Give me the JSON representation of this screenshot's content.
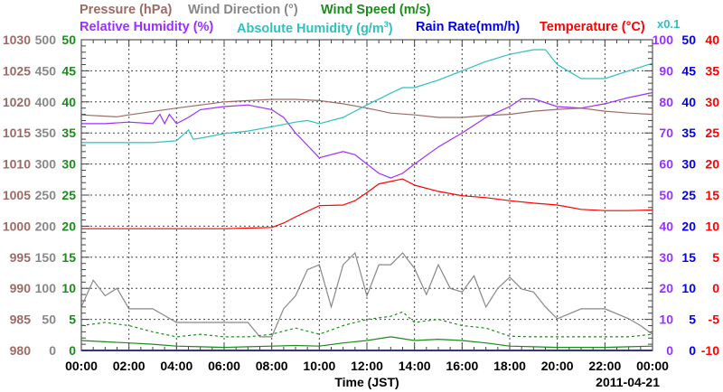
{
  "legend": {
    "pressure": {
      "label": "Pressure (hPa)",
      "color": "#9c6b66"
    },
    "wind_direction": {
      "label": "Wind Direction (°)",
      "color": "#888888"
    },
    "wind_speed": {
      "label": "Wind Speed (m/s)",
      "color": "#1a8c1a"
    },
    "relative_humidity": {
      "label": "Relative Humidity (%)",
      "color": "#9b30ff"
    },
    "absolute_humidity": {
      "label": "Absolute Humidity (g/m",
      "sup": "3",
      "close": ")",
      "color": "#30c0c0"
    },
    "rain_rate": {
      "label": "Rain Rate(mm/h)",
      "color": "#0000ee"
    },
    "temperature": {
      "label": "Temperature (°C)",
      "color": "#ff0000"
    },
    "scale_note": "x0.1"
  },
  "chart_data": {
    "type": "line",
    "xlabel": "Time (JST)",
    "date_label": "2011-04-21",
    "x_ticks": [
      "00:00",
      "02:00",
      "04:00",
      "06:00",
      "08:00",
      "10:00",
      "12:00",
      "14:00",
      "16:00",
      "18:00",
      "20:00",
      "22:00",
      "00:00"
    ],
    "xlim_hours": [
      0,
      24
    ],
    "grid": true,
    "axes": {
      "pressure": {
        "ticks": [
          "1030",
          "1025",
          "1020",
          "1015",
          "1010",
          "1005",
          "1000",
          "995",
          "990",
          "985",
          "980"
        ],
        "ylim": [
          980,
          1030
        ]
      },
      "wind_direction": {
        "ticks": [
          "500",
          "450",
          "400",
          "350",
          "300",
          "250",
          "200",
          "150",
          "100",
          "50",
          "0"
        ],
        "ylim": [
          0,
          500
        ]
      },
      "wind_speed": {
        "ticks": [
          "50",
          "45",
          "40",
          "35",
          "30",
          "25",
          "20",
          "15",
          "10",
          "5",
          "0"
        ],
        "ylim": [
          0,
          50
        ]
      },
      "relative_humidity": {
        "ticks": [
          "100",
          "90",
          "80",
          "70",
          "60",
          "50",
          "40",
          "30",
          "20",
          "10",
          "0"
        ],
        "ylim": [
          0,
          100
        ]
      },
      "rain_rate": {
        "ticks": [
          "50",
          "45",
          "40",
          "35",
          "30",
          "25",
          "20",
          "15",
          "10",
          "5",
          "0"
        ],
        "ylim": [
          0,
          50
        ]
      },
      "temperature": {
        "ticks": [
          "40",
          "35",
          "30",
          "25",
          "20",
          "15",
          "10",
          "5",
          "0",
          "-5",
          "-10"
        ],
        "ylim": [
          -10,
          40
        ]
      }
    },
    "series": [
      {
        "name": "Pressure",
        "axis": "pressure",
        "color": "#9c6b66",
        "x": [
          0,
          1.5,
          2,
          4,
          6,
          7,
          8,
          9,
          10,
          11,
          12,
          13,
          14,
          15,
          16,
          17,
          18,
          19,
          20,
          21,
          22,
          23,
          24
        ],
        "y": [
          1017.9,
          1017.6,
          1017.9,
          1019,
          1020,
          1020.2,
          1020.4,
          1020.4,
          1020.2,
          1019.7,
          1019,
          1018.2,
          1017.9,
          1017.5,
          1017.5,
          1017.8,
          1018,
          1018.5,
          1018.8,
          1019,
          1018.5,
          1018.2,
          1018
        ]
      },
      {
        "name": "Relative Humidity",
        "axis": "relative_humidity",
        "color": "#9b30ff",
        "x": [
          0,
          1,
          2,
          3,
          3.3,
          3.5,
          3.7,
          4,
          4.5,
          5,
          6,
          7,
          8,
          8.5,
          9,
          9.5,
          10,
          11,
          11.5,
          12,
          12.5,
          13,
          13.5,
          14,
          15,
          16,
          17,
          18,
          18.5,
          19,
          20,
          21,
          22,
          23,
          24
        ],
        "y": [
          73,
          73,
          73.5,
          73,
          76,
          73,
          76,
          73,
          75,
          77.5,
          78.5,
          79,
          77.5,
          75,
          70,
          66,
          62,
          64,
          63,
          60,
          57,
          55.5,
          57,
          60,
          65.5,
          70,
          75,
          78.5,
          81,
          81,
          78.5,
          78,
          79.4,
          81.4,
          83
        ]
      },
      {
        "name": "Absolute Humidity",
        "axis": "relative_humidity",
        "scale": 10,
        "color": "#30c0c0",
        "x": [
          0,
          2,
          3,
          4,
          4.5,
          4.7,
          5,
          6,
          7,
          8,
          9,
          9.5,
          10,
          11,
          11.5,
          12,
          13,
          13.5,
          14,
          15,
          16,
          17,
          18,
          19,
          19.5,
          20,
          21,
          22,
          23,
          24
        ],
        "y": [
          6.69,
          6.69,
          6.69,
          6.75,
          7.1,
          6.8,
          6.83,
          6.98,
          7.06,
          7.2,
          7.35,
          7.4,
          7.3,
          7.5,
          7.7,
          7.9,
          8.28,
          8.46,
          8.46,
          8.7,
          9.0,
          9.3,
          9.53,
          9.68,
          9.68,
          9.2,
          8.75,
          8.75,
          9.0,
          9.24
        ]
      },
      {
        "name": "Rain Rate",
        "axis": "rain_rate",
        "color": "#0000ee",
        "x": [
          0,
          24
        ],
        "y": [
          0,
          0
        ]
      },
      {
        "name": "Temperature",
        "axis": "temperature",
        "color": "#ff0000",
        "x": [
          0,
          2,
          4,
          6,
          7,
          8,
          8.5,
          9,
          10,
          11,
          11.5,
          12,
          12.5,
          13,
          13.5,
          14,
          15,
          16,
          17,
          18,
          19,
          20,
          21,
          22,
          23,
          24
        ],
        "y": [
          9.6,
          9.6,
          9.6,
          9.6,
          9.7,
          9.8,
          10.5,
          11.5,
          13.3,
          13.4,
          14.1,
          15.4,
          16.8,
          17.2,
          17.6,
          16.6,
          15.6,
          14.9,
          14.6,
          14.1,
          13.7,
          13.4,
          12.7,
          12.5,
          12.5,
          12.6
        ]
      },
      {
        "name": "Wind Direction",
        "axis": "wind_direction",
        "color": "#888888",
        "x": [
          0,
          0.5,
          1,
          1.5,
          2,
          3,
          4,
          5,
          6,
          7,
          7.5,
          8,
          8.5,
          9,
          9.5,
          10,
          10.5,
          11,
          11.5,
          12,
          12.5,
          13,
          13.5,
          14,
          14.5,
          15,
          15.5,
          16,
          16.5,
          17,
          17.5,
          18,
          18.5,
          19,
          19.5,
          20,
          21,
          22,
          23,
          23.5,
          24
        ],
        "y": [
          70,
          113,
          88,
          100,
          67,
          67,
          45,
          45,
          45,
          45,
          22,
          22,
          67,
          88,
          130,
          138,
          70,
          138,
          157,
          88,
          138,
          138,
          157,
          132,
          90,
          138,
          100,
          94,
          120,
          70,
          100,
          118,
          99,
          94,
          70,
          51,
          67,
          67,
          51,
          40,
          26
        ]
      },
      {
        "name": "Wind Speed (avg)",
        "axis": "wind_speed",
        "color": "#1a8c1a",
        "dash": false,
        "x": [
          0,
          1,
          2,
          3,
          4,
          5,
          6,
          7,
          8,
          9,
          10,
          11,
          12,
          13,
          14,
          15,
          16,
          17,
          18,
          19,
          20,
          21,
          22,
          23,
          24
        ],
        "y": [
          1.6,
          1.4,
          1.2,
          1.0,
          0.7,
          0.6,
          0.5,
          0.6,
          0.7,
          0.8,
          0.7,
          1.2,
          1.6,
          2.2,
          1.6,
          1.8,
          1.6,
          1.2,
          0.7,
          0.6,
          0.5,
          0.5,
          0.5,
          0.6,
          0.7
        ]
      },
      {
        "name": "Wind Speed (gust)",
        "axis": "wind_speed",
        "color": "#1a8c1a",
        "dash": true,
        "x": [
          0,
          1,
          2,
          3,
          4,
          5,
          6,
          7,
          8,
          9,
          10,
          11,
          12,
          13,
          13.5,
          14,
          15,
          16,
          17,
          18,
          19,
          20,
          21,
          22,
          23,
          24
        ],
        "y": [
          4,
          4.5,
          4,
          3,
          2.2,
          2.6,
          2.2,
          2.2,
          2.6,
          3.6,
          2.6,
          4,
          5,
          5.5,
          6.2,
          4.5,
          5,
          4,
          3.6,
          2.3,
          2.2,
          2.2,
          2.2,
          2.2,
          2.2,
          2.6
        ]
      }
    ]
  }
}
